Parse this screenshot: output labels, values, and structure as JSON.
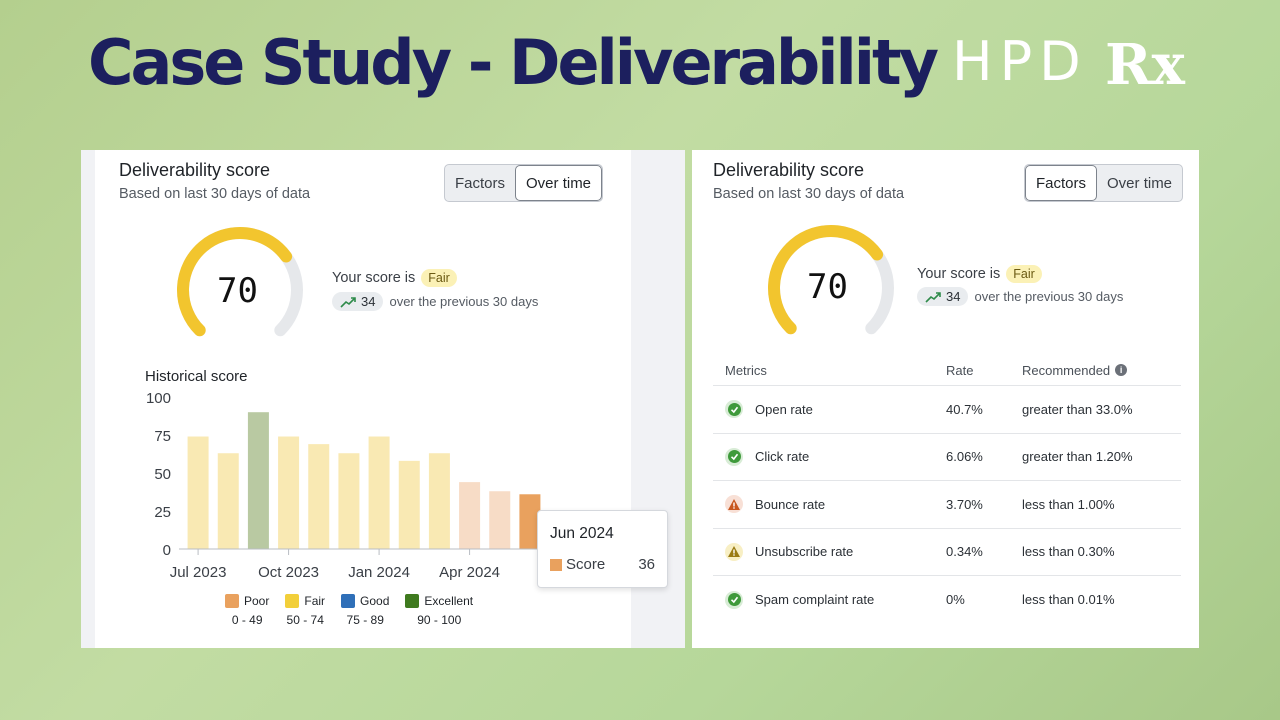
{
  "header": {
    "title": "Case Study - Deliverability",
    "brand": "HPD",
    "brand_mark": "Rx"
  },
  "left": {
    "title": "Deliverability score",
    "subtitle": "Based on last 30 days of data",
    "tabs": [
      "Factors",
      "Over time"
    ],
    "active_tab": "Over time",
    "score": "70",
    "score_fraction": 0.7,
    "score_label": "Your score is",
    "rating": "Fair",
    "delta": "34",
    "delta_text": "over the previous 30 days",
    "history_title": "Historical score",
    "tooltip": {
      "title": "Jun 2024",
      "series": "Score",
      "value": "36"
    },
    "legend": [
      {
        "label": "Poor",
        "range": "0 - 49",
        "color": "#e9a15e"
      },
      {
        "label": "Fair",
        "range": "50 - 74",
        "color": "#f2cf3a"
      },
      {
        "label": "Good",
        "range": "75 - 89",
        "color": "#2f6fb8"
      },
      {
        "label": "Excellent",
        "range": "90 - 100",
        "color": "#3f7a1f"
      }
    ]
  },
  "chart_data": {
    "type": "bar",
    "title": "Historical score",
    "xlabel": "",
    "ylabel": "",
    "ylim": [
      0,
      100
    ],
    "yticks": [
      0,
      25,
      50,
      75,
      100
    ],
    "xtick_labels": [
      "Jul 2023",
      "Oct 2023",
      "Jan 2024",
      "Apr 2024"
    ],
    "xtick_indices": [
      0,
      3,
      6,
      9
    ],
    "values": [
      74,
      63,
      90,
      74,
      69,
      63,
      74,
      58,
      63,
      44,
      38,
      36
    ],
    "colors": [
      "#f9e9b3",
      "#f9e9b3",
      "#b9c9a2",
      "#f9e9b3",
      "#f9e9b3",
      "#f9e9b3",
      "#f9e9b3",
      "#f9e9b3",
      "#f9e9b3",
      "#f7dcc6",
      "#f7dcc6",
      "#e9a15e"
    ]
  },
  "right": {
    "title": "Deliverability score",
    "subtitle": "Based on last 30 days of data",
    "tabs": [
      "Factors",
      "Over time"
    ],
    "active_tab": "Factors",
    "score": "70",
    "score_fraction": 0.7,
    "score_label": "Your score is",
    "rating": "Fair",
    "delta": "34",
    "delta_text": "over the previous 30 days",
    "table_headers": [
      "Metrics",
      "Rate",
      "Recommended"
    ],
    "metrics": [
      {
        "name": "Open rate",
        "rate": "40.7%",
        "recommended": "greater than 33.0%",
        "status": "ok"
      },
      {
        "name": "Click rate",
        "rate": "6.06%",
        "recommended": "greater than 1.20%",
        "status": "ok"
      },
      {
        "name": "Bounce rate",
        "rate": "3.70%",
        "recommended": "less than 1.00%",
        "status": "warn-red"
      },
      {
        "name": "Unsubscribe rate",
        "rate": "0.34%",
        "recommended": "less than 0.30%",
        "status": "warn-yellow"
      },
      {
        "name": "Spam complaint rate",
        "rate": "0%",
        "recommended": "less than 0.01%",
        "status": "ok"
      }
    ]
  }
}
